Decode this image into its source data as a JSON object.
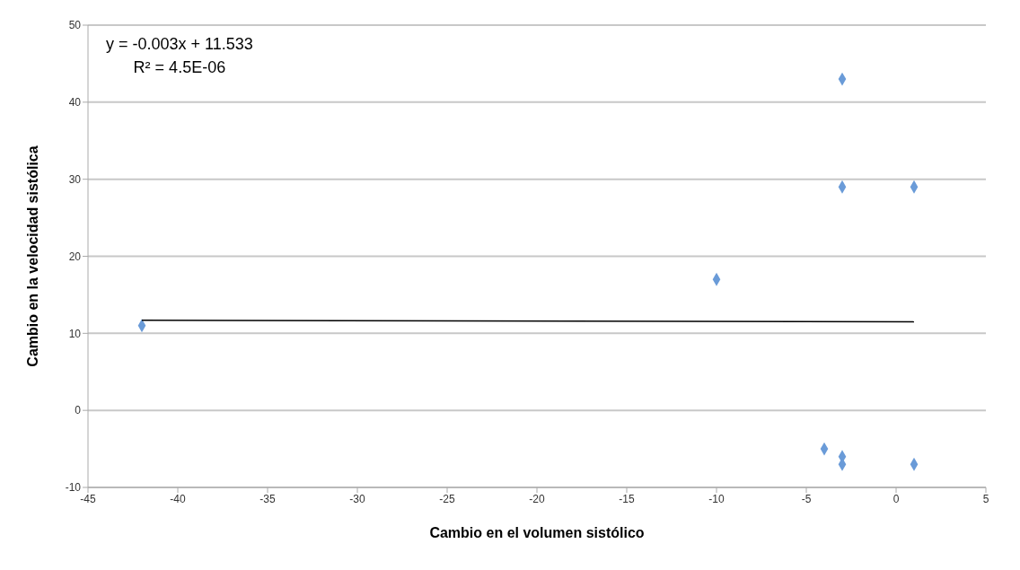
{
  "chart_data": {
    "type": "scatter",
    "xlabel": "Cambio en el volumen sistólico",
    "ylabel": "Cambio en la velocidad sistólica",
    "annotations": [
      "y = -0.003x + 11.533",
      "R² = 4.5E-06"
    ],
    "xlim": [
      -45,
      5
    ],
    "xticks": [
      -45,
      -40,
      -35,
      -30,
      -25,
      -20,
      -15,
      -10,
      -5,
      0,
      5
    ],
    "ylim": [
      -10,
      50
    ],
    "yticks": [
      -10,
      0,
      10,
      20,
      30,
      40,
      50
    ],
    "grid": "y",
    "series": [
      {
        "marker": "diamond",
        "color": "#6a9bd8",
        "x": [
          -42,
          -10,
          -3,
          -3,
          1,
          -4,
          -3,
          -3,
          1
        ],
        "values": [
          11,
          17,
          43,
          29,
          29,
          -5,
          -6,
          -7,
          -7
        ]
      },
      {
        "type": "line",
        "marker": "none",
        "color": "#000000",
        "x": [
          -42,
          1
        ],
        "values": [
          11.7,
          11.5
        ]
      }
    ]
  }
}
